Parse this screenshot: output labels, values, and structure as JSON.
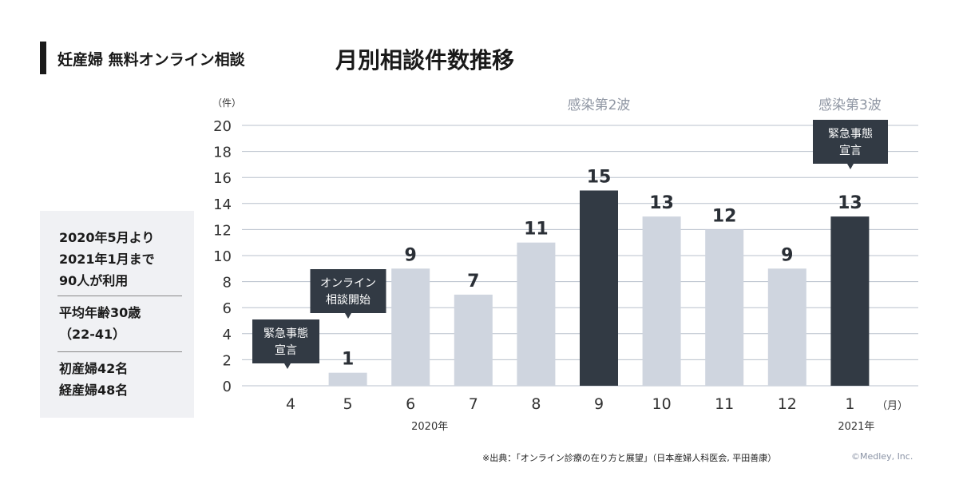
{
  "header": {
    "subtitle": "妊産婦 無料オンライン相談",
    "title": "月別相談件数推移"
  },
  "summary": {
    "period": "2020年5月より\n2021年1月まで\n90人が利用",
    "age": "平均年齢30歳\n（22-41）",
    "births": "初産婦42名\n経産婦48名"
  },
  "chart_data": {
    "type": "bar",
    "title": "月別相談件数推移",
    "ylabel": "（件）",
    "xlabel": "（月）",
    "ylim": [
      0,
      20
    ],
    "yticks": [
      0,
      2,
      4,
      6,
      8,
      10,
      12,
      14,
      16,
      18,
      20
    ],
    "categories": [
      "4",
      "5",
      "6",
      "7",
      "8",
      "9",
      "10",
      "11",
      "12",
      "1"
    ],
    "values": [
      0,
      1,
      9,
      7,
      11,
      15,
      13,
      12,
      9,
      13
    ],
    "value_labels": [
      "",
      "1",
      "9",
      "7",
      "11",
      "15",
      "13",
      "12",
      "9",
      "13"
    ],
    "highlight": [
      false,
      false,
      false,
      false,
      false,
      true,
      false,
      false,
      false,
      true
    ],
    "year_labels": [
      {
        "category": "6",
        "text": "2020年"
      },
      {
        "category": "1",
        "text": "2021年"
      }
    ],
    "wave_labels": [
      {
        "category": "9",
        "text": "感染第2波"
      },
      {
        "category": "1",
        "text": "感染第3波"
      }
    ],
    "callouts": [
      {
        "category": "4",
        "lines": [
          "緊急事態",
          "宣言"
        ]
      },
      {
        "category": "5",
        "lines": [
          "オンライン",
          "相談開始"
        ]
      },
      {
        "category": "1",
        "lines": [
          "緊急事態",
          "宣言"
        ]
      }
    ],
    "colors": {
      "bar": "#cfd5df",
      "highlight": "#323a44",
      "grid": "#b8c0cc",
      "wave": "#8f96a3"
    }
  },
  "footer": {
    "source": "※出典：「オンライン診療の在り方と展望」（日本産婦人科医会, 平田善康）",
    "copyright": "©Medley, Inc."
  }
}
